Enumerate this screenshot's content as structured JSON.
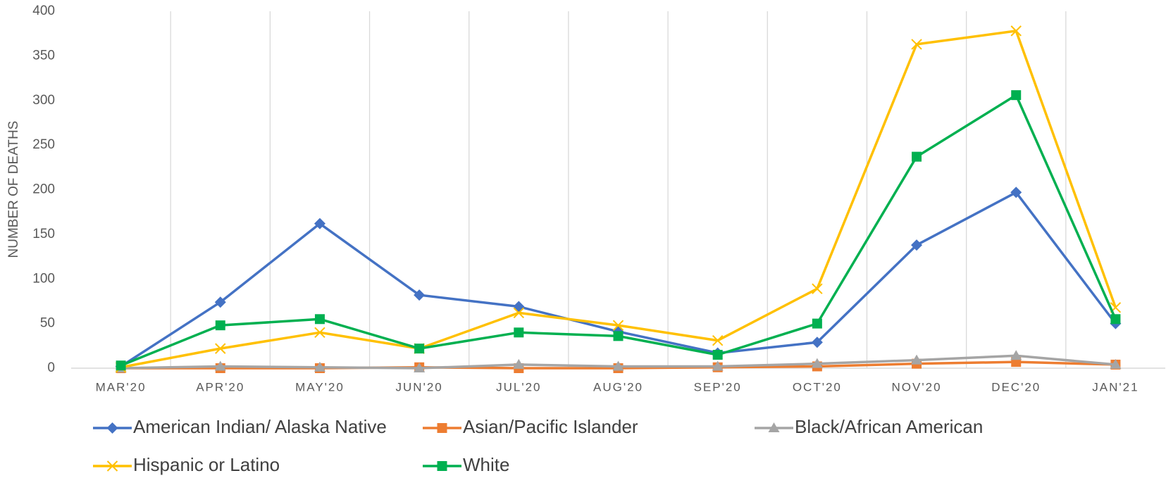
{
  "chart_data": {
    "type": "line",
    "y_label": "NUMBER OF DEATHS",
    "categories": [
      "MAR'20",
      "APR'20",
      "MAY'20",
      "JUN'20",
      "JUL'20",
      "AUG'20",
      "SEP'20",
      "OCT'20",
      "NOV'20",
      "DEC'20",
      "JAN'21"
    ],
    "series": [
      {
        "name": "American Indian/ Alaska Native",
        "color": "#4472c4",
        "marker": "diamond",
        "values": [
          2,
          74,
          162,
          82,
          69,
          41,
          17,
          29,
          138,
          197,
          50
        ]
      },
      {
        "name": "Asian/Pacific Islander",
        "color": "#ed7d31",
        "marker": "square",
        "values": [
          0,
          0,
          0,
          1,
          0,
          0,
          1,
          2,
          5,
          7,
          4
        ]
      },
      {
        "name": "Black/African American",
        "color": "#a5a5a5",
        "marker": "triangle",
        "values": [
          0,
          2,
          1,
          0,
          4,
          2,
          2,
          5,
          9,
          14,
          4
        ]
      },
      {
        "name": "Hispanic or Latino",
        "color": "#ffc000",
        "marker": "x",
        "values": [
          1,
          22,
          40,
          22,
          62,
          48,
          31,
          89,
          363,
          378,
          68
        ]
      },
      {
        "name": "White",
        "color": "#00b050",
        "marker": "square",
        "values": [
          3,
          48,
          55,
          22,
          40,
          36,
          15,
          50,
          237,
          306,
          55
        ]
      }
    ],
    "ylim": [
      0,
      400
    ],
    "yticks": [
      0,
      50,
      100,
      150,
      200,
      250,
      300,
      350,
      400
    ],
    "legend": "bottom"
  }
}
